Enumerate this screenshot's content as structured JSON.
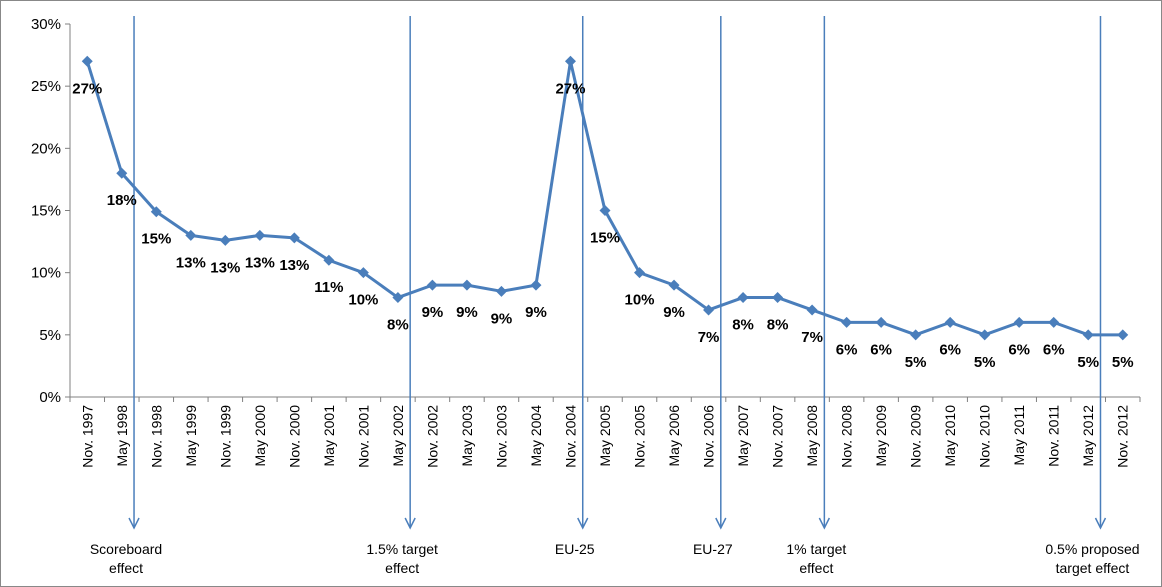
{
  "chart_data": {
    "type": "line",
    "title": "",
    "xlabel": "",
    "ylabel": "",
    "ylim": [
      0,
      30
    ],
    "yticks": [
      "0%",
      "5%",
      "10%",
      "15%",
      "20%",
      "25%",
      "30%"
    ],
    "grid": false,
    "legend": "none",
    "categories": [
      "Nov. 1997",
      "May 1998",
      "Nov. 1998",
      "May 1999",
      "Nov. 1999",
      "May 2000",
      "Nov. 2000",
      "May 2001",
      "Nov. 2001",
      "May 2002",
      "Nov. 2002",
      "May 2003",
      "Nov. 2003",
      "May 2004",
      "Nov. 2004",
      "May 2005",
      "Nov. 2005",
      "May 2006",
      "Nov. 2006",
      "May 2007",
      "Nov. 2007",
      "May 2008",
      "Nov. 2008",
      "May 2009",
      "Nov. 2009",
      "May 2010",
      "Nov. 2010",
      "May 2011",
      "Nov. 2011",
      "May 2012",
      "Nov. 2012"
    ],
    "series": [
      {
        "values": [
          27,
          18,
          14.9,
          13,
          12.6,
          13,
          12.8,
          11,
          10,
          8,
          9,
          9,
          8.5,
          9,
          27,
          15,
          10,
          9,
          7,
          8,
          8,
          7,
          6,
          6,
          5,
          6,
          5,
          6,
          6,
          5,
          5
        ],
        "labels": [
          "27%",
          "18%",
          "15%",
          "13%",
          "13%",
          "13%",
          "13%",
          "11%",
          "10%",
          "8%",
          "9%",
          "9%",
          "9%",
          "9%",
          "27%",
          "15%",
          "10%",
          "9%",
          "7%",
          "8%",
          "8%",
          "7%",
          "6%",
          "6%",
          "5%",
          "6%",
          "5%",
          "6%",
          "6%",
          "5%",
          "5%"
        ],
        "color": "#4a7ebb"
      }
    ],
    "annotations": [
      {
        "lines": [
          "Scoreboard",
          "effect"
        ],
        "after_category": "May 1998"
      },
      {
        "lines": [
          "1.5% target",
          "effect"
        ],
        "after_category": "May 2002"
      },
      {
        "lines": [
          "EU-25"
        ],
        "after_category": "Nov. 2004"
      },
      {
        "lines": [
          "EU-27"
        ],
        "after_category": "Nov. 2006"
      },
      {
        "lines": [
          "1% target",
          "effect"
        ],
        "after_category": "May 2008"
      },
      {
        "lines": [
          "0.5% proposed",
          "target effect"
        ],
        "after_category": "May 2012"
      }
    ],
    "colors": {
      "line": "#4a7ebb",
      "arrow": "#4a7ebb",
      "axis": "#808080"
    }
  }
}
